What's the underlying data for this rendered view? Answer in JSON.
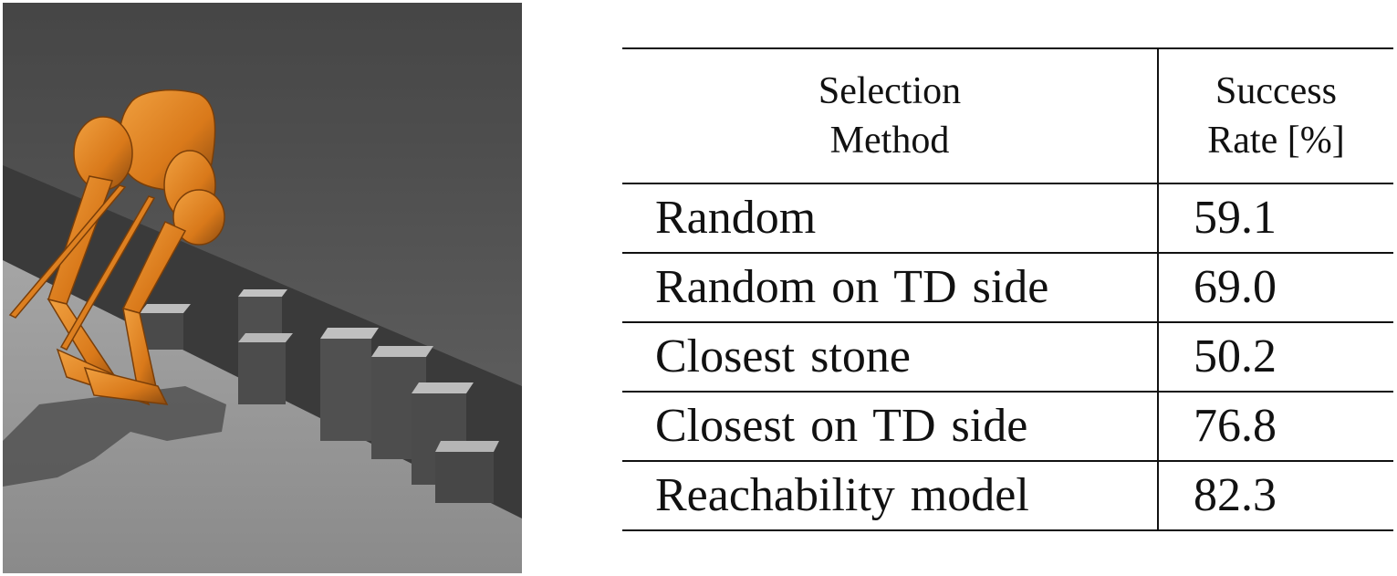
{
  "table": {
    "headers": [
      [
        "Selection",
        "Method"
      ],
      [
        "Success",
        "Rate [%]"
      ]
    ],
    "rows": [
      {
        "method": "Random",
        "rate": "59.1"
      },
      {
        "method": "Random on TD side",
        "rate": "69.0"
      },
      {
        "method": "Closest stone",
        "rate": "50.2"
      },
      {
        "method": "Closest on TD side",
        "rate": "76.8"
      },
      {
        "method": "Reachability model",
        "rate": "82.3"
      }
    ]
  },
  "colors": {
    "robot": "#d9791a",
    "floor": "#8f8f8f",
    "background": "#4a4a4a",
    "stone": "#bdbdbd"
  }
}
